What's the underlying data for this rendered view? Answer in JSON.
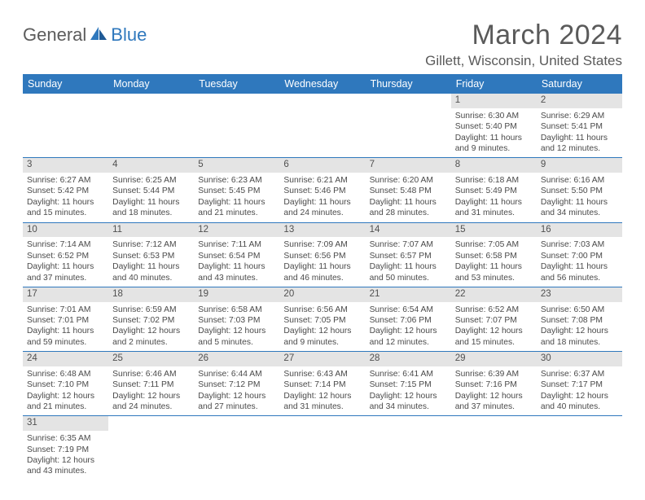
{
  "logo": {
    "part1": "General",
    "part2": "Blue"
  },
  "title": "March 2024",
  "location": "Gillett, Wisconsin, United States",
  "colors": {
    "header_bg": "#2f78bd",
    "header_text": "#ffffff",
    "daynum_bg": "#e4e4e4",
    "row_border": "#2f78bd",
    "text": "#4a4a4a",
    "logo_gray": "#5c5c5c",
    "logo_blue": "#2f78bd"
  },
  "weekdays": [
    "Sunday",
    "Monday",
    "Tuesday",
    "Wednesday",
    "Thursday",
    "Friday",
    "Saturday"
  ],
  "weeks": [
    [
      null,
      null,
      null,
      null,
      null,
      {
        "n": "1",
        "sr": "Sunrise: 6:30 AM",
        "ss": "Sunset: 5:40 PM",
        "dl": "Daylight: 11 hours and 9 minutes."
      },
      {
        "n": "2",
        "sr": "Sunrise: 6:29 AM",
        "ss": "Sunset: 5:41 PM",
        "dl": "Daylight: 11 hours and 12 minutes."
      }
    ],
    [
      {
        "n": "3",
        "sr": "Sunrise: 6:27 AM",
        "ss": "Sunset: 5:42 PM",
        "dl": "Daylight: 11 hours and 15 minutes."
      },
      {
        "n": "4",
        "sr": "Sunrise: 6:25 AM",
        "ss": "Sunset: 5:44 PM",
        "dl": "Daylight: 11 hours and 18 minutes."
      },
      {
        "n": "5",
        "sr": "Sunrise: 6:23 AM",
        "ss": "Sunset: 5:45 PM",
        "dl": "Daylight: 11 hours and 21 minutes."
      },
      {
        "n": "6",
        "sr": "Sunrise: 6:21 AM",
        "ss": "Sunset: 5:46 PM",
        "dl": "Daylight: 11 hours and 24 minutes."
      },
      {
        "n": "7",
        "sr": "Sunrise: 6:20 AM",
        "ss": "Sunset: 5:48 PM",
        "dl": "Daylight: 11 hours and 28 minutes."
      },
      {
        "n": "8",
        "sr": "Sunrise: 6:18 AM",
        "ss": "Sunset: 5:49 PM",
        "dl": "Daylight: 11 hours and 31 minutes."
      },
      {
        "n": "9",
        "sr": "Sunrise: 6:16 AM",
        "ss": "Sunset: 5:50 PM",
        "dl": "Daylight: 11 hours and 34 minutes."
      }
    ],
    [
      {
        "n": "10",
        "sr": "Sunrise: 7:14 AM",
        "ss": "Sunset: 6:52 PM",
        "dl": "Daylight: 11 hours and 37 minutes."
      },
      {
        "n": "11",
        "sr": "Sunrise: 7:12 AM",
        "ss": "Sunset: 6:53 PM",
        "dl": "Daylight: 11 hours and 40 minutes."
      },
      {
        "n": "12",
        "sr": "Sunrise: 7:11 AM",
        "ss": "Sunset: 6:54 PM",
        "dl": "Daylight: 11 hours and 43 minutes."
      },
      {
        "n": "13",
        "sr": "Sunrise: 7:09 AM",
        "ss": "Sunset: 6:56 PM",
        "dl": "Daylight: 11 hours and 46 minutes."
      },
      {
        "n": "14",
        "sr": "Sunrise: 7:07 AM",
        "ss": "Sunset: 6:57 PM",
        "dl": "Daylight: 11 hours and 50 minutes."
      },
      {
        "n": "15",
        "sr": "Sunrise: 7:05 AM",
        "ss": "Sunset: 6:58 PM",
        "dl": "Daylight: 11 hours and 53 minutes."
      },
      {
        "n": "16",
        "sr": "Sunrise: 7:03 AM",
        "ss": "Sunset: 7:00 PM",
        "dl": "Daylight: 11 hours and 56 minutes."
      }
    ],
    [
      {
        "n": "17",
        "sr": "Sunrise: 7:01 AM",
        "ss": "Sunset: 7:01 PM",
        "dl": "Daylight: 11 hours and 59 minutes."
      },
      {
        "n": "18",
        "sr": "Sunrise: 6:59 AM",
        "ss": "Sunset: 7:02 PM",
        "dl": "Daylight: 12 hours and 2 minutes."
      },
      {
        "n": "19",
        "sr": "Sunrise: 6:58 AM",
        "ss": "Sunset: 7:03 PM",
        "dl": "Daylight: 12 hours and 5 minutes."
      },
      {
        "n": "20",
        "sr": "Sunrise: 6:56 AM",
        "ss": "Sunset: 7:05 PM",
        "dl": "Daylight: 12 hours and 9 minutes."
      },
      {
        "n": "21",
        "sr": "Sunrise: 6:54 AM",
        "ss": "Sunset: 7:06 PM",
        "dl": "Daylight: 12 hours and 12 minutes."
      },
      {
        "n": "22",
        "sr": "Sunrise: 6:52 AM",
        "ss": "Sunset: 7:07 PM",
        "dl": "Daylight: 12 hours and 15 minutes."
      },
      {
        "n": "23",
        "sr": "Sunrise: 6:50 AM",
        "ss": "Sunset: 7:08 PM",
        "dl": "Daylight: 12 hours and 18 minutes."
      }
    ],
    [
      {
        "n": "24",
        "sr": "Sunrise: 6:48 AM",
        "ss": "Sunset: 7:10 PM",
        "dl": "Daylight: 12 hours and 21 minutes."
      },
      {
        "n": "25",
        "sr": "Sunrise: 6:46 AM",
        "ss": "Sunset: 7:11 PM",
        "dl": "Daylight: 12 hours and 24 minutes."
      },
      {
        "n": "26",
        "sr": "Sunrise: 6:44 AM",
        "ss": "Sunset: 7:12 PM",
        "dl": "Daylight: 12 hours and 27 minutes."
      },
      {
        "n": "27",
        "sr": "Sunrise: 6:43 AM",
        "ss": "Sunset: 7:14 PM",
        "dl": "Daylight: 12 hours and 31 minutes."
      },
      {
        "n": "28",
        "sr": "Sunrise: 6:41 AM",
        "ss": "Sunset: 7:15 PM",
        "dl": "Daylight: 12 hours and 34 minutes."
      },
      {
        "n": "29",
        "sr": "Sunrise: 6:39 AM",
        "ss": "Sunset: 7:16 PM",
        "dl": "Daylight: 12 hours and 37 minutes."
      },
      {
        "n": "30",
        "sr": "Sunrise: 6:37 AM",
        "ss": "Sunset: 7:17 PM",
        "dl": "Daylight: 12 hours and 40 minutes."
      }
    ],
    [
      {
        "n": "31",
        "sr": "Sunrise: 6:35 AM",
        "ss": "Sunset: 7:19 PM",
        "dl": "Daylight: 12 hours and 43 minutes."
      },
      null,
      null,
      null,
      null,
      null,
      null
    ]
  ]
}
